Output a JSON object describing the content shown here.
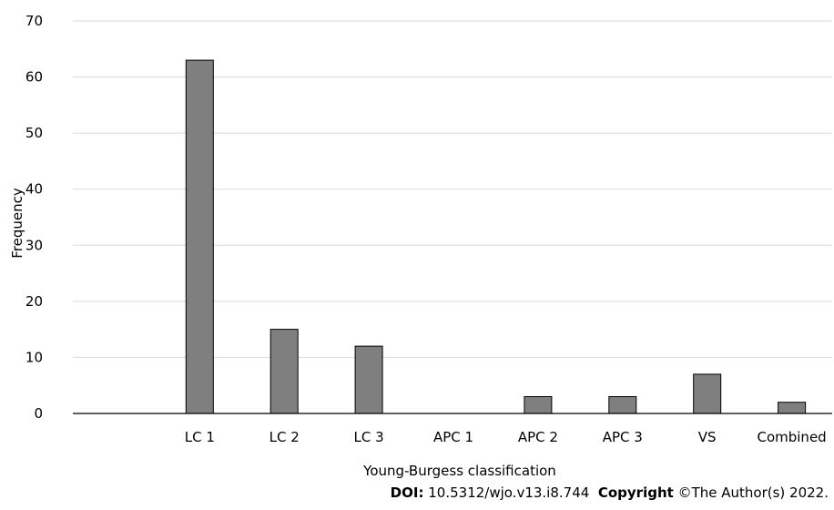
{
  "chart_data": {
    "type": "bar",
    "categories": [
      "",
      "LC 1",
      "LC 2",
      "LC 3",
      "APC 1",
      "APC 2",
      "APC 3",
      "VS",
      "Combined"
    ],
    "values": [
      null,
      63,
      15,
      12,
      0,
      3,
      3,
      7,
      2
    ],
    "xlabel": "Young-Burgess classification",
    "ylabel": "Frequency",
    "ylim": [
      0,
      70
    ],
    "yticks": [
      0,
      10,
      20,
      30,
      40,
      50,
      60,
      70
    ],
    "grid": true,
    "bar_color": "#7f7f7f",
    "bar_edge_color": "#000000",
    "grid_color": "#d9d9d9"
  },
  "footer": {
    "doi_label": "DOI:",
    "doi_value": "10.5312/wjo.v13.i8.744",
    "copyright_label": "Copyright",
    "copyright_value": "©The Author(s) 2022."
  }
}
